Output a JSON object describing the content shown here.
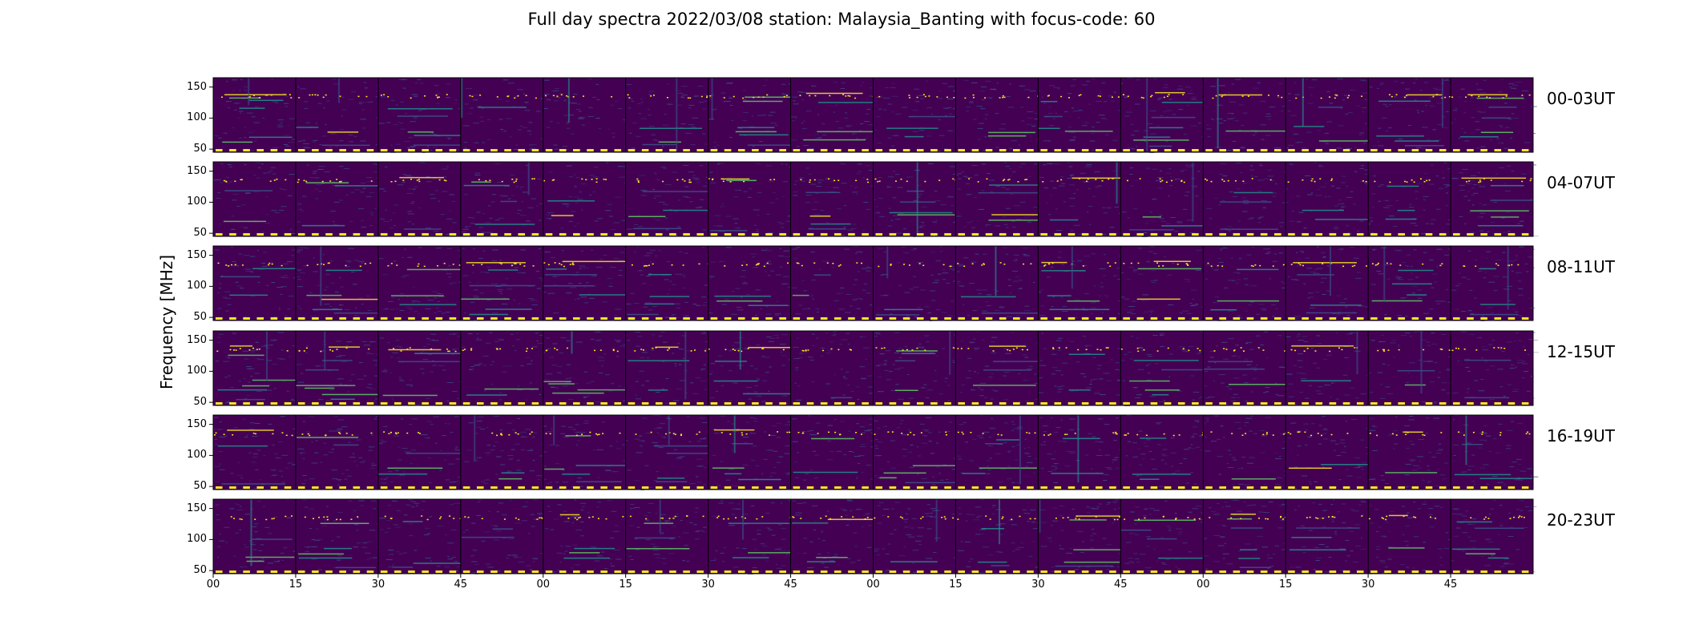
{
  "chart_data": {
    "type": "heatmap",
    "title": "Full day spectra 2022/03/08 station: Malaysia_Banting with focus-code: 60",
    "xlabel": "",
    "ylabel": "Frequency [MHz]",
    "ylim": [
      45,
      165
    ],
    "yticks": [
      "50",
      "100",
      "150"
    ],
    "xticks": [
      "00",
      "15",
      "30",
      "45",
      "00",
      "15",
      "30",
      "45",
      "00",
      "15",
      "30",
      "45",
      "00",
      "15",
      "30",
      "45"
    ],
    "segments_per_row": 16,
    "segment_minutes": 15,
    "colormap": [
      "#440154",
      "#3b528b",
      "#21918c",
      "#5ec962",
      "#fde725"
    ],
    "rows": [
      {
        "label": "00-03UT"
      },
      {
        "label": "04-07UT"
      },
      {
        "label": "08-11UT"
      },
      {
        "label": "12-15UT"
      },
      {
        "label": "16-19UT"
      },
      {
        "label": "20-23UT"
      }
    ]
  }
}
